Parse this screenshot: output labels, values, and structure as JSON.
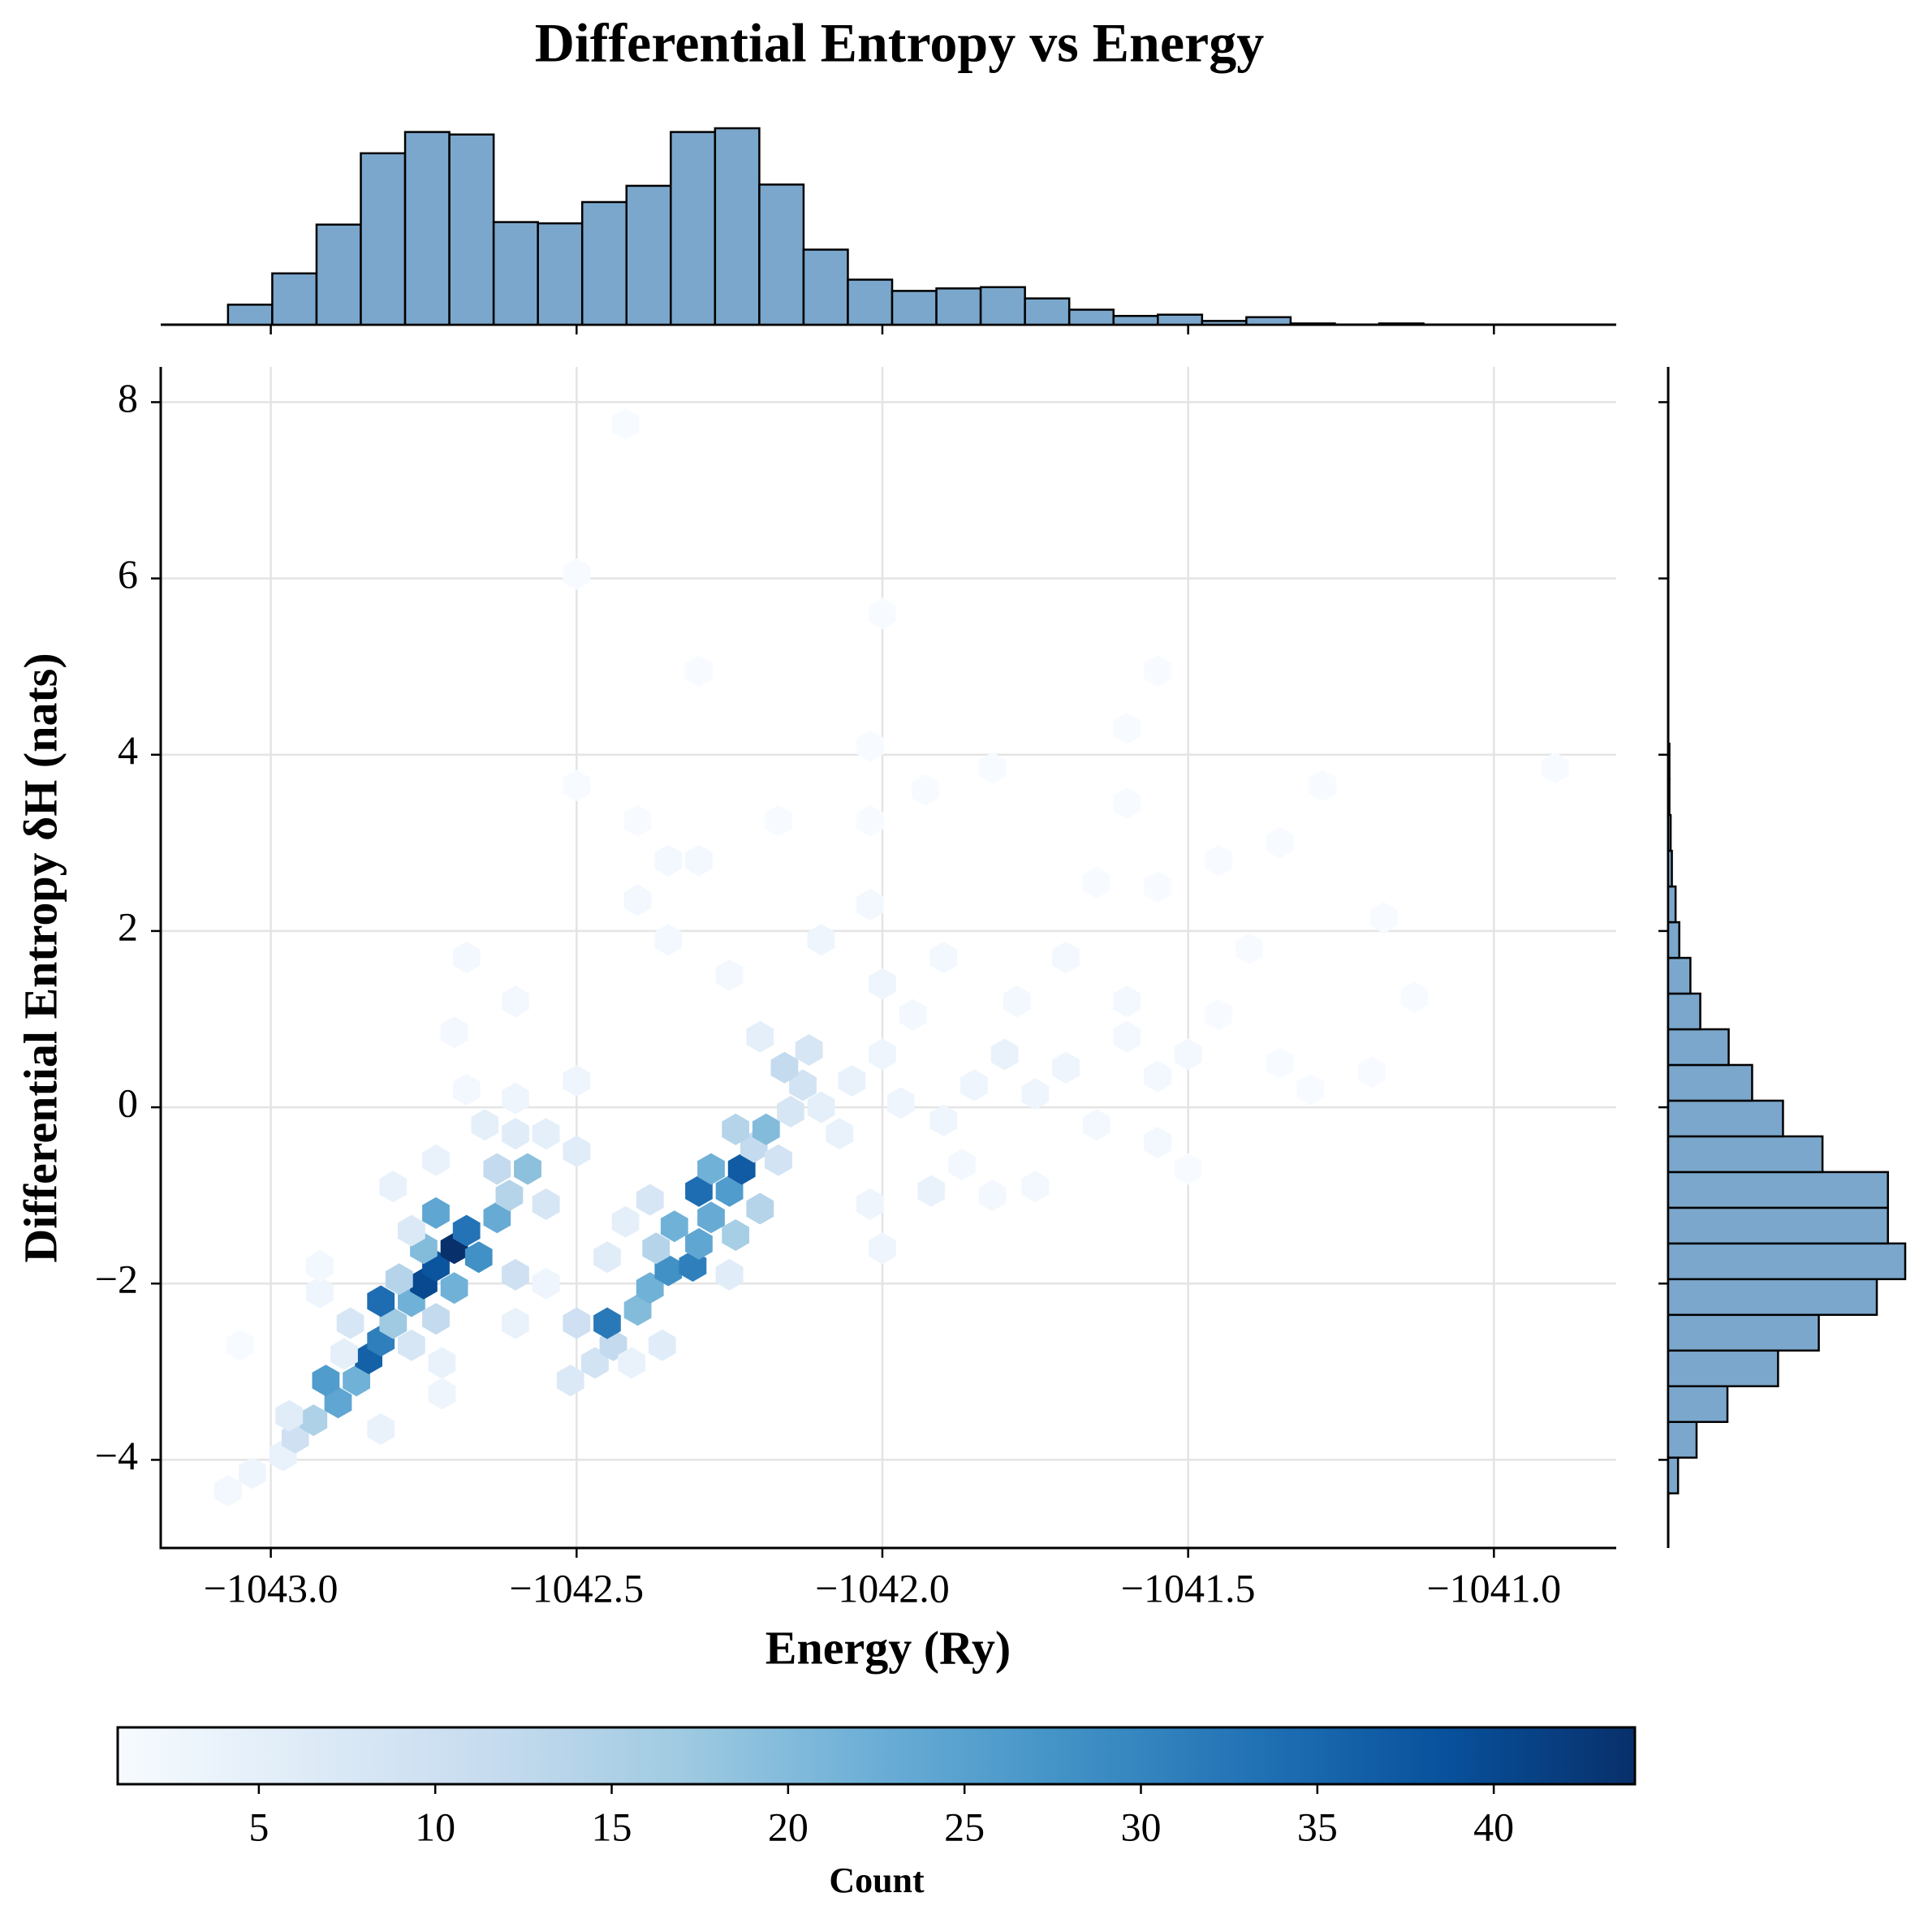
{
  "chart_data": {
    "type": "hexbin",
    "title": "Differential Entropy vs Energy",
    "xlabel": "Energy (Ry)",
    "ylabel": "Differential Entropy δH (nats)",
    "xlim": [
      -1043.18,
      -1040.8
    ],
    "ylim": [
      -5.0,
      8.4
    ],
    "xticks": [
      {
        "value": -1043.0,
        "label": "−1043.0"
      },
      {
        "value": -1042.5,
        "label": "−1042.5"
      },
      {
        "value": -1042.0,
        "label": "−1042.0"
      },
      {
        "value": -1041.5,
        "label": "−1041.5"
      },
      {
        "value": -1041.0,
        "label": "−1041.0"
      }
    ],
    "yticks": [
      {
        "value": -4,
        "label": "−4"
      },
      {
        "value": -2,
        "label": "−2"
      },
      0,
      2,
      4,
      6,
      8
    ],
    "grid": true,
    "hexbin": {
      "x": [
        -1043.07,
        -1043.03,
        -1042.98,
        -1042.96,
        -1042.93,
        -1042.89,
        -1042.91,
        -1042.86,
        -1042.84,
        -1042.82,
        -1042.8,
        -1042.82,
        -1042.77,
        -1042.75,
        -1042.79,
        -1042.73,
        -1042.7,
        -1042.75,
        -1042.66,
        -1042.68,
        -1042.73,
        -1042.63,
        -1042.61,
        -1042.58,
        -1042.63,
        -1042.7,
        -1042.73,
        -1042.87,
        -1042.97,
        -1042.77,
        -1042.72,
        -1042.88,
        -1042.6,
        -1042.55,
        -1042.77,
        -1042.6,
        -1042.55,
        -1042.5,
        -1042.65,
        -1042.73,
        -1042.8,
        -1042.92,
        -1042.6,
        -1042.5,
        -1042.68,
        -1042.51,
        -1042.47,
        -1042.44,
        -1042.45,
        -1042.5,
        -1042.4,
        -1042.38,
        -1042.35,
        -1042.31,
        -1042.37,
        -1042.3,
        -1042.34,
        -1042.28,
        -1042.3,
        -1042.25,
        -1042.23,
        -1042.28,
        -1042.21,
        -1042.19,
        -1042.24,
        -1042.2,
        -1042.24,
        -1042.36,
        -1042.41,
        -1042.25,
        -1042.17,
        -1042.15,
        -1042.13,
        -1042.16,
        -1042.12,
        -1042.2,
        -1042.1,
        -1042.07,
        -1042.02,
        -1042.0,
        -1042.38,
        -1042.42,
        -1042.45,
        -1042.55,
        -1042.6,
        -1042.05,
        -1042.0,
        -1041.97,
        -1041.9,
        -1041.85,
        -1041.8,
        -1041.75,
        -1041.7,
        -1041.65,
        -1041.6,
        -1041.55,
        -1041.87,
        -1041.92,
        -1041.82,
        -1041.75,
        -1041.95,
        -1042.0,
        -1041.9,
        -1041.78,
        -1041.7,
        -1041.6,
        -1041.5,
        -1041.45,
        -1041.35,
        -1041.3,
        -1041.5,
        -1041.55,
        -1041.4,
        -1041.2,
        -1041.13,
        -1041.18,
        -1042.02,
        -1042.1,
        -1042.25,
        -1042.35,
        -1042.4,
        -1042.35,
        -1042.3,
        -1042.4,
        -1042.02,
        -1042.17,
        -1041.93,
        -1041.6,
        -1041.65,
        -1041.55,
        -1041.35,
        -1041.28,
        -1041.45,
        -1041.82,
        -1042.02,
        -1041.55,
        -1041.6,
        -1040.9,
        -1042.0,
        -1042.3,
        -1042.5,
        -1042.42,
        -1042.5,
        -1042.68,
        -1042.6,
        -1042.7,
        -1042.92,
        -1043.05,
        -1042.82,
        -1042.72
      ],
      "y": [
        -4.35,
        -4.15,
        -3.95,
        -3.75,
        -3.55,
        -3.35,
        -3.1,
        -3.1,
        -2.85,
        -2.65,
        -2.45,
        -2.2,
        -2.2,
        -2.0,
        -1.95,
        -1.8,
        -1.6,
        -1.6,
        -1.7,
        -1.4,
        -1.2,
        -1.25,
        -1.0,
        -0.7,
        -0.7,
        -2.05,
        -2.4,
        -2.45,
        -3.5,
        -2.7,
        -2.9,
        -2.8,
        -1.9,
        -1.1,
        -1.4,
        -0.3,
        -0.3,
        -0.5,
        -0.2,
        -0.6,
        -0.9,
        -2.1,
        0.1,
        0.3,
        0.2,
        -3.1,
        -2.9,
        -2.7,
        -2.45,
        -2.45,
        -2.3,
        -2.05,
        -1.85,
        -1.8,
        -1.6,
        -1.55,
        -1.35,
        -1.25,
        -0.95,
        -0.95,
        -0.7,
        -0.7,
        -0.45,
        -0.25,
        -0.25,
        -1.15,
        -1.45,
        -2.7,
        -2.9,
        -1.9,
        -0.6,
        -0.05,
        0.25,
        0.45,
        0.65,
        0.8,
        0.0,
        -0.3,
        -1.1,
        -1.6,
        -1.05,
        -1.3,
        -1.7,
        -2.0,
        -2.45,
        0.3,
        0.6,
        0.05,
        -0.15,
        0.25,
        0.6,
        0.15,
        0.45,
        -0.2,
        0.8,
        0.35,
        -0.65,
        -0.95,
        -1.0,
        -0.9,
        1.05,
        1.4,
        1.7,
        1.2,
        1.7,
        1.2,
        0.6,
        1.05,
        0.5,
        0.2,
        -0.7,
        -0.4,
        1.8,
        0.4,
        1.25,
        2.15,
        2.3,
        1.9,
        1.5,
        1.9,
        2.35,
        2.8,
        2.8,
        3.25,
        3.25,
        3.25,
        3.6,
        3.45,
        2.55,
        2.5,
        3.0,
        3.65,
        2.8,
        3.85,
        4.1,
        4.95,
        4.3,
        3.85,
        5.6,
        4.95,
        6.05,
        7.75,
        3.65,
        1.7,
        1.2,
        0.85,
        -1.8,
        -2.7,
        -3.65,
        -3.25
      ],
      "counts": [
        2,
        3,
        4,
        10,
        15,
        24,
        26,
        22,
        36,
        31,
        17,
        34,
        22,
        40,
        14,
        38,
        44,
        20,
        28,
        33,
        24,
        23,
        14,
        19,
        12,
        22,
        12,
        8,
        6,
        8,
        4,
        5,
        10,
        8,
        7,
        6,
        5,
        6,
        5,
        4,
        4,
        3,
        3,
        3,
        2,
        7,
        9,
        12,
        32,
        10,
        20,
        22,
        28,
        31,
        14,
        24,
        22,
        23,
        34,
        26,
        37,
        22,
        12,
        20,
        14,
        14,
        16,
        6,
        4,
        6,
        9,
        8,
        9,
        12,
        8,
        5,
        5,
        4,
        3,
        3,
        8,
        5,
        6,
        3,
        4,
        4,
        3,
        3,
        3,
        3,
        4,
        3,
        3,
        2,
        2,
        2,
        2,
        4,
        2,
        2,
        2,
        3,
        2,
        2,
        2,
        2,
        2,
        1,
        1,
        1,
        1,
        2,
        1,
        1,
        1,
        1,
        2,
        3,
        2,
        2,
        2,
        2,
        2,
        1,
        1,
        1,
        1,
        1,
        1,
        1,
        1,
        1,
        1,
        1,
        1,
        1,
        1,
        1,
        1,
        1,
        1,
        1,
        1,
        2,
        2,
        2,
        2,
        1,
        4,
        3
      ]
    },
    "colormap": [
      "#f7fbff",
      "#deebf7",
      "#c6dbef",
      "#9ecae1",
      "#6baed6",
      "#4292c6",
      "#2171b5",
      "#08519c",
      "#08306b"
    ],
    "colorbar": {
      "label": "Count",
      "lim": [
        1,
        44
      ],
      "ticks": [
        5,
        10,
        15,
        20,
        25,
        30,
        35,
        40
      ]
    },
    "top_histogram": {
      "color": "#7ba7cc",
      "bins": [
        -1043.07,
        -1042.9976,
        -1042.9252,
        -1042.8528,
        -1042.7804,
        -1042.708,
        -1042.6356,
        -1042.5632,
        -1042.4908,
        -1042.4184,
        -1042.346,
        -1042.2736,
        -1042.2012,
        -1042.1288,
        -1042.0564,
        -1041.984,
        -1041.9116,
        -1041.8392,
        -1041.7668,
        -1041.6944,
        -1041.622,
        -1041.5496,
        -1041.4772,
        -1041.4048,
        -1041.3324,
        -1041.26,
        -1041.1876,
        -1041.1152,
        -1041.0428,
        -1040.9704,
        -1040.898,
        -1040.8256
      ],
      "counts": [
        16,
        41,
        80,
        137,
        154,
        152,
        82,
        81,
        98,
        111,
        154,
        157,
        112,
        60,
        36,
        27,
        29,
        30,
        21,
        12,
        7,
        8,
        3,
        6,
        1,
        0,
        1,
        0,
        0,
        0,
        0
      ]
    },
    "right_histogram": {
      "color": "#7ba7cc",
      "bins": [
        -4.38,
        -3.975,
        -3.57,
        -3.165,
        -2.76,
        -2.355,
        -1.95,
        -1.545,
        -1.14,
        -0.735,
        -0.33,
        0.075,
        0.48,
        0.885,
        1.29,
        1.695,
        2.1,
        2.505,
        2.91,
        3.315,
        3.72,
        4.125
      ],
      "counts": [
        8,
        23,
        48,
        89,
        122,
        169,
        192,
        178,
        178,
        125,
        93,
        68,
        49,
        26,
        18,
        9,
        6,
        3,
        2,
        1,
        1
      ]
    }
  }
}
